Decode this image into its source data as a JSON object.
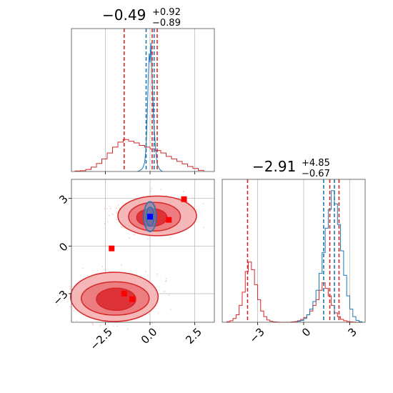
{
  "chart_data": {
    "type": "corner",
    "colors": {
      "red": "#d62728",
      "blue": "#1f77b4",
      "marker_blue": "#0000ff",
      "marker_red": "#ff0000",
      "grid": "#b0b0b0"
    },
    "titles": [
      {
        "main": "−0.49",
        "sup": "+0.92",
        "sub": "−0.89"
      },
      {
        "main": "−2.91",
        "sup": "+4.85",
        "sub": "−0.67"
      }
    ],
    "xlim_p1": [
      -4.4,
      3.6
    ],
    "xlim_p2": [
      -5.3,
      4.0
    ],
    "ylim_scatter": [
      -4.8,
      4.2
    ],
    "ticks_p1": [
      {
        "v": -2.5,
        "label": "−2.5"
      },
      {
        "v": 0.0,
        "label": "0.0"
      },
      {
        "v": 2.5,
        "label": "2.5"
      }
    ],
    "ticks_p2": [
      {
        "v": -3,
        "label": "−3"
      },
      {
        "v": 0,
        "label": "0"
      },
      {
        "v": 3,
        "label": "3"
      }
    ],
    "ticks_y": [
      {
        "v": 3,
        "label": "3"
      },
      {
        "v": 0,
        "label": "0"
      },
      {
        "v": -3,
        "label": "−3"
      }
    ],
    "hist1_red": {
      "bins": [
        -4.2,
        -3.9,
        -3.6,
        -3.3,
        -3.0,
        -2.7,
        -2.4,
        -2.1,
        -1.8,
        -1.5,
        -1.2,
        -0.9,
        -0.6,
        -0.3,
        0.0,
        0.3,
        0.6,
        0.9,
        1.2,
        1.5,
        1.8,
        2.1,
        2.4,
        2.7,
        3.0
      ],
      "counts": [
        0.3,
        0.5,
        1.2,
        2.6,
        4.8,
        7.5,
        11,
        14.5,
        17.5,
        19,
        18,
        17,
        15.5,
        14.5,
        13.5,
        12.5,
        11,
        9,
        7.5,
        6,
        4.5,
        3,
        1.8,
        0.7
      ]
    },
    "hist1_blue": {
      "x": [
        -0.7,
        -0.6,
        -0.5,
        -0.4,
        -0.3,
        -0.25,
        -0.2,
        -0.15,
        -0.1,
        -0.05,
        0.0,
        0.05,
        0.1,
        0.15,
        0.2,
        0.25,
        0.3,
        0.35,
        0.4,
        0.5,
        0.6,
        0.7
      ],
      "y": [
        0,
        0.5,
        1.2,
        2.5,
        6,
        12,
        22,
        40,
        62,
        78,
        72,
        85,
        66,
        50,
        35,
        25,
        17,
        10,
        5,
        2,
        0.7,
        0
      ]
    },
    "vlines1": [
      {
        "color": "red",
        "v": -1.45
      },
      {
        "color": "red",
        "v": 0.12
      },
      {
        "color": "red",
        "v": 0.4
      },
      {
        "color": "blue",
        "v": -0.22
      },
      {
        "color": "blue",
        "v": 0.23
      }
    ],
    "hist2_red": {
      "bins": [
        -5.0,
        -4.8,
        -4.6,
        -4.4,
        -4.2,
        -4.0,
        -3.8,
        -3.6,
        -3.4,
        -3.2,
        -3.0,
        -2.8,
        -2.6,
        -2.4,
        -2.2,
        -2.0,
        -1.8,
        -1.6,
        -1.4,
        -1.2,
        -1.0,
        -0.8,
        -0.6,
        -0.4,
        -0.2,
        0.0,
        0.2,
        0.4,
        0.6,
        0.8,
        1.0,
        1.2,
        1.4,
        1.6,
        1.8,
        2.0,
        2.2,
        2.4,
        2.6,
        2.8,
        3.0,
        3.2,
        3.4,
        3.6,
        3.8
      ],
      "counts": [
        0.3,
        0.8,
        2,
        4,
        9,
        16,
        27,
        32,
        28,
        20,
        12,
        6,
        3,
        1.2,
        0.5,
        0.2,
        0.1,
        0,
        0,
        0,
        0,
        0.2,
        0.4,
        0.8,
        1.5,
        2.5,
        4,
        6,
        9,
        12,
        17,
        21,
        18,
        14,
        9,
        5,
        3,
        1.5,
        0.8,
        0.4,
        0.2,
        0.1,
        0,
        0
      ]
    },
    "hist2_blue": {
      "bins": [
        -0.4,
        -0.2,
        0.0,
        0.2,
        0.4,
        0.6,
        0.8,
        1.0,
        1.2,
        1.4,
        1.6,
        1.8,
        2.0,
        2.2,
        2.4,
        2.6,
        2.8,
        3.0,
        3.2,
        3.4,
        3.6,
        3.8
      ],
      "counts": [
        0.5,
        1,
        2,
        4,
        7,
        11,
        17,
        26,
        37,
        50,
        60,
        70,
        63,
        52,
        38,
        25,
        14,
        7,
        3,
        1,
        0.3
      ]
    },
    "vlines2": [
      {
        "color": "red",
        "v": -3.65
      },
      {
        "color": "red",
        "v": 1.7
      },
      {
        "color": "red",
        "v": 2.3
      },
      {
        "color": "blue",
        "v": 1.3
      },
      {
        "color": "blue",
        "v": 2.0
      }
    ],
    "contours_red": [
      {
        "cx": 0.4,
        "cy": 1.9,
        "rx": 2.2,
        "ry": 1.25,
        "level": 3
      },
      {
        "cx": 0.25,
        "cy": 1.85,
        "rx": 1.45,
        "ry": 0.9,
        "level": 2
      },
      {
        "cx": 0.1,
        "cy": 1.8,
        "rx": 0.85,
        "ry": 0.55,
        "level": 1
      },
      {
        "cx": -2.0,
        "cy": -3.2,
        "rx": 2.45,
        "ry": 1.55,
        "level": 3
      },
      {
        "cx": -1.95,
        "cy": -3.3,
        "rx": 1.9,
        "ry": 1.05,
        "level": 2
      },
      {
        "cx": -1.9,
        "cy": -3.35,
        "rx": 1.1,
        "ry": 0.7,
        "level": 1
      }
    ],
    "contours_blue": [
      {
        "cx": 0.0,
        "cy": 1.85,
        "rx": 0.35,
        "ry": 0.95
      },
      {
        "cx": 0.0,
        "cy": 1.85,
        "rx": 0.22,
        "ry": 0.6
      }
    ],
    "markers_red": [
      {
        "x": 1.9,
        "y": 2.95
      },
      {
        "x": 1.05,
        "y": 1.65
      },
      {
        "x": -2.15,
        "y": -0.15
      },
      {
        "x": -1.45,
        "y": -3.0
      },
      {
        "x": -1.0,
        "y": -3.35
      }
    ],
    "marker_blue": {
      "x": 0.0,
      "y": 1.85
    }
  }
}
